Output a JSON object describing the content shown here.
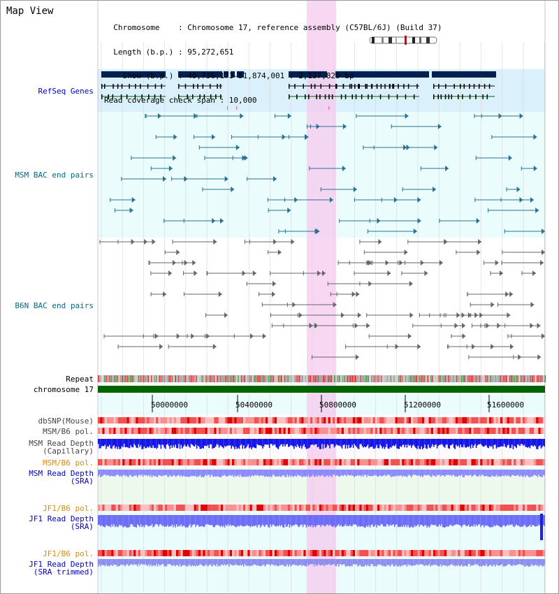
{
  "header": {
    "title": "Map View",
    "info_lines": [
      "  Chromosome    : Chromosome 17, reference assembly (C57BL/6J) (Build 37)",
      "  Length (b.p.) : 95,272,651",
      "    Show (b.p.) : 49,736,173-51,874,001 : 2,137,829 bp",
      "Read coverage check span : 10,000"
    ]
  },
  "tracks": {
    "refseq": "RefSeq Genes",
    "msm_bac": "MSM BAC end pairs",
    "b6n_bac": "B6N BAC end pairs",
    "repeat": "Repeat",
    "chromosome": "chromosome 17",
    "dbsnp": "dbSNP(Mouse)",
    "msm_b6_pol": "MSM/B6 pol.",
    "msm_depth_cap": "MSM Read Depth\n(Capillary)",
    "msm_b6_pol2": "MSM/B6 pol.",
    "msm_depth_sra": "MSM Read Depth\n(SRA)",
    "jf1_pol": "JF1/B6 pol.",
    "jf1_depth_sra": "JF1 Read Depth\n(SRA)",
    "jf1_pol2": "JF1/B6 pol.",
    "jf1_depth_trim": "JF1 Read Depth\n(SRA trimmed)"
  },
  "ruler": {
    "ticks": [
      "50000000",
      "50400000",
      "50800000",
      "51200000",
      "51600000"
    ]
  },
  "colors": {
    "refseq_bg": "#daf1fb",
    "bac_bg": "#eafcfc",
    "highlight": "#f6c9ef",
    "chromosome": "#006400",
    "msm_label": "#006a80",
    "gene": "#002050",
    "pol_label": "#e08a00",
    "depth_label": "#0000c0"
  }
}
